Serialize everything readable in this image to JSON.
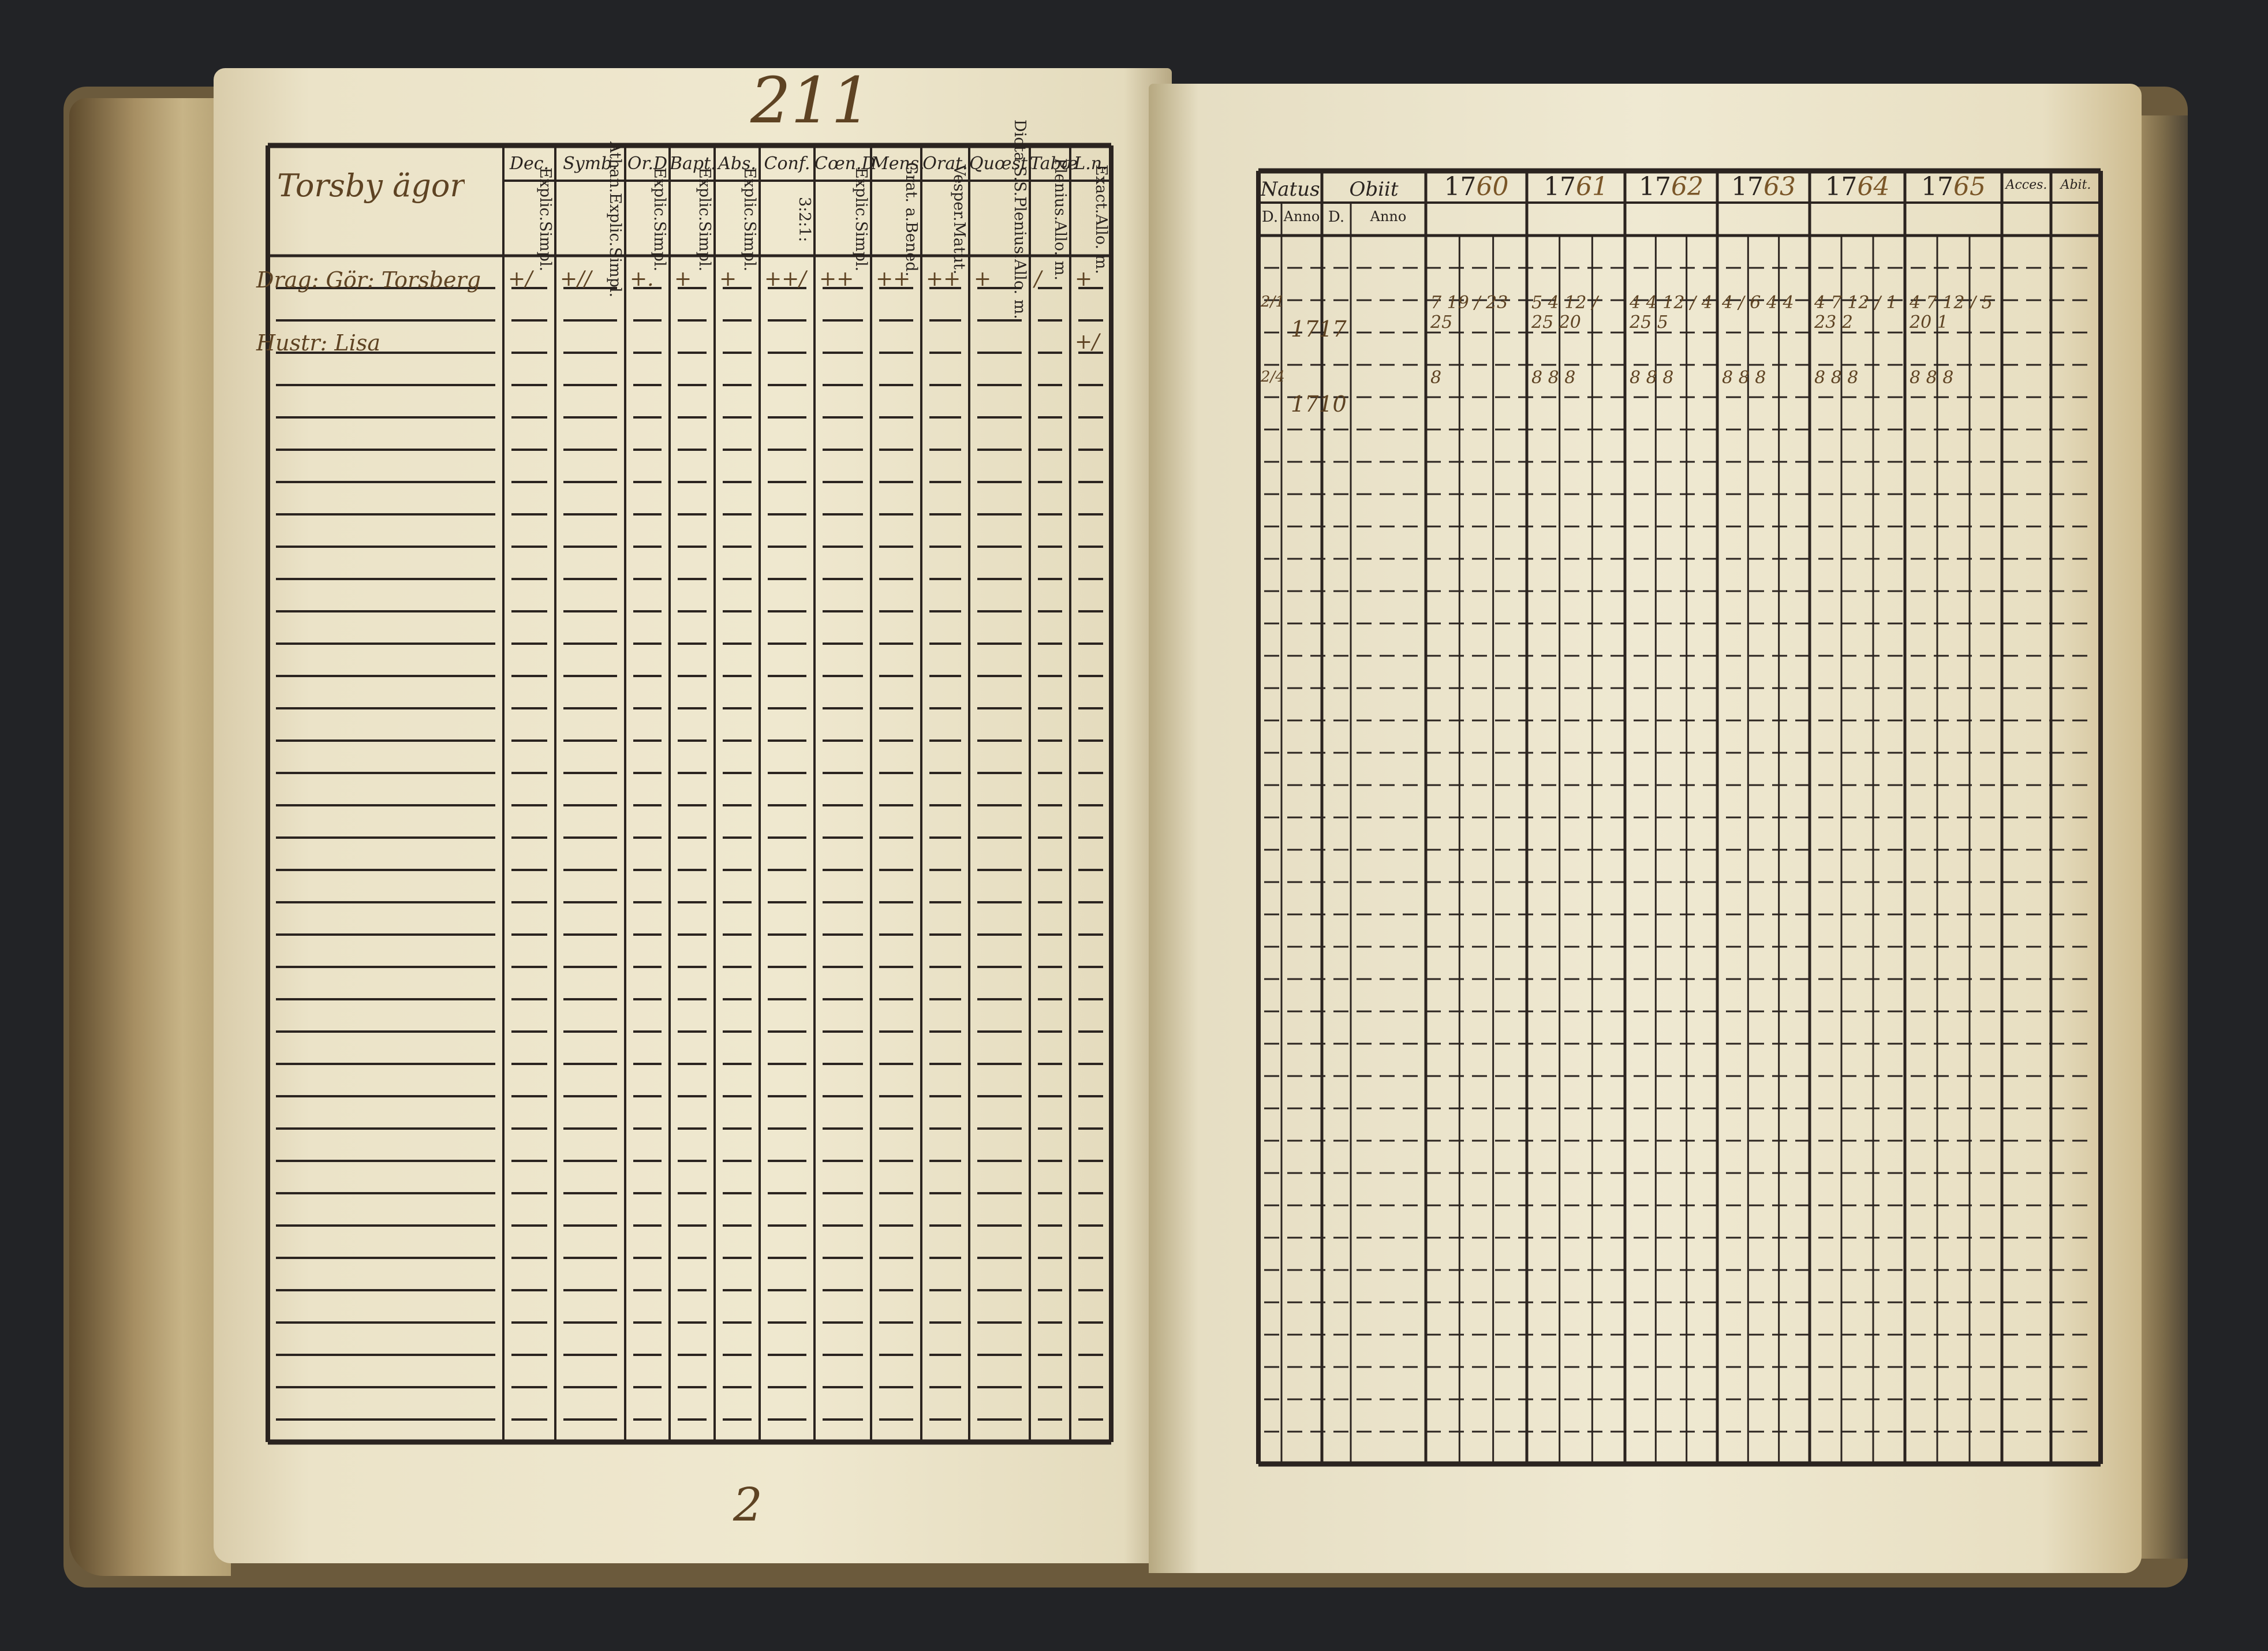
{
  "page_number": "211",
  "footer_mark": "2",
  "left_table": {
    "name_header": "Torsby ägor",
    "columns": [
      {
        "label": "Dec.",
        "sub": [
          "Explic.",
          "Simpl."
        ]
      },
      {
        "label": "Symb.",
        "sub": [
          "Athan.",
          "Explic.",
          "Simpl."
        ]
      },
      {
        "label": "Or.D",
        "sub": [
          "Explic.",
          "Simpl."
        ]
      },
      {
        "label": "Bapt.",
        "sub": [
          "Explic.",
          "Simpl."
        ]
      },
      {
        "label": "Abs.",
        "sub": [
          "Explic.",
          "Simpl."
        ]
      },
      {
        "label": "Conf.",
        "sub": [
          "3:",
          "2:",
          "1:"
        ]
      },
      {
        "label": "Cœn.D",
        "sub": [
          "Explic.",
          "Simpl."
        ]
      },
      {
        "label": "Mens.",
        "sub": [
          "Grat. a.",
          "Bened."
        ]
      },
      {
        "label": "Orat.",
        "sub": [
          "Vesper.",
          "Matut."
        ]
      },
      {
        "label": "Quœst.",
        "sub": [
          "Dicta S.S.",
          "Plenius.",
          "Allo. m."
        ]
      },
      {
        "label": "Tabæ",
        "sub": [
          "Plenius.",
          "Allo. m."
        ]
      },
      {
        "label": "L.n.",
        "sub": [
          "Exact.",
          "Allo. m."
        ]
      }
    ],
    "entries": [
      {
        "name": "Drag: Gör: Torsberg",
        "marks": [
          "+/",
          "+//",
          "+.",
          "+",
          "+",
          "++/",
          "++",
          "++",
          "++",
          "+",
          "/",
          "+"
        ]
      },
      {
        "name": "Hustr: Lisa",
        "marks": [
          "",
          "",
          "",
          "",
          "",
          "",
          "",
          "",
          "",
          "",
          "",
          "+/"
        ]
      }
    ]
  },
  "right_table": {
    "headers": [
      "Natus",
      "Obiit",
      "1760",
      "1761",
      "1762",
      "1763",
      "1764",
      "1765",
      "Acces.",
      "Abit."
    ],
    "year_prefix": "17",
    "year_suffixes": [
      "60",
      "61",
      "62",
      "63",
      "64",
      "65"
    ],
    "sub_headers": [
      "D.",
      "Anno",
      "D.",
      "Anno"
    ],
    "entries": [
      {
        "natus_d": "2/1",
        "natus_anno": "1717",
        "years": [
          "7 19 / 23 25",
          "5 4 12 / 25 20",
          "4 4 12 / 4 25 5",
          "4 / 6 4 4",
          "4 7 12 / 1 23 2",
          "4 7 12 / 5 20 1"
        ]
      },
      {
        "natus_d": "2/4",
        "natus_anno": "1710",
        "years": [
          "8",
          "8 8 8",
          "8 8 8",
          "8 8 8",
          "8 8 8",
          "8 8 8"
        ]
      }
    ]
  }
}
